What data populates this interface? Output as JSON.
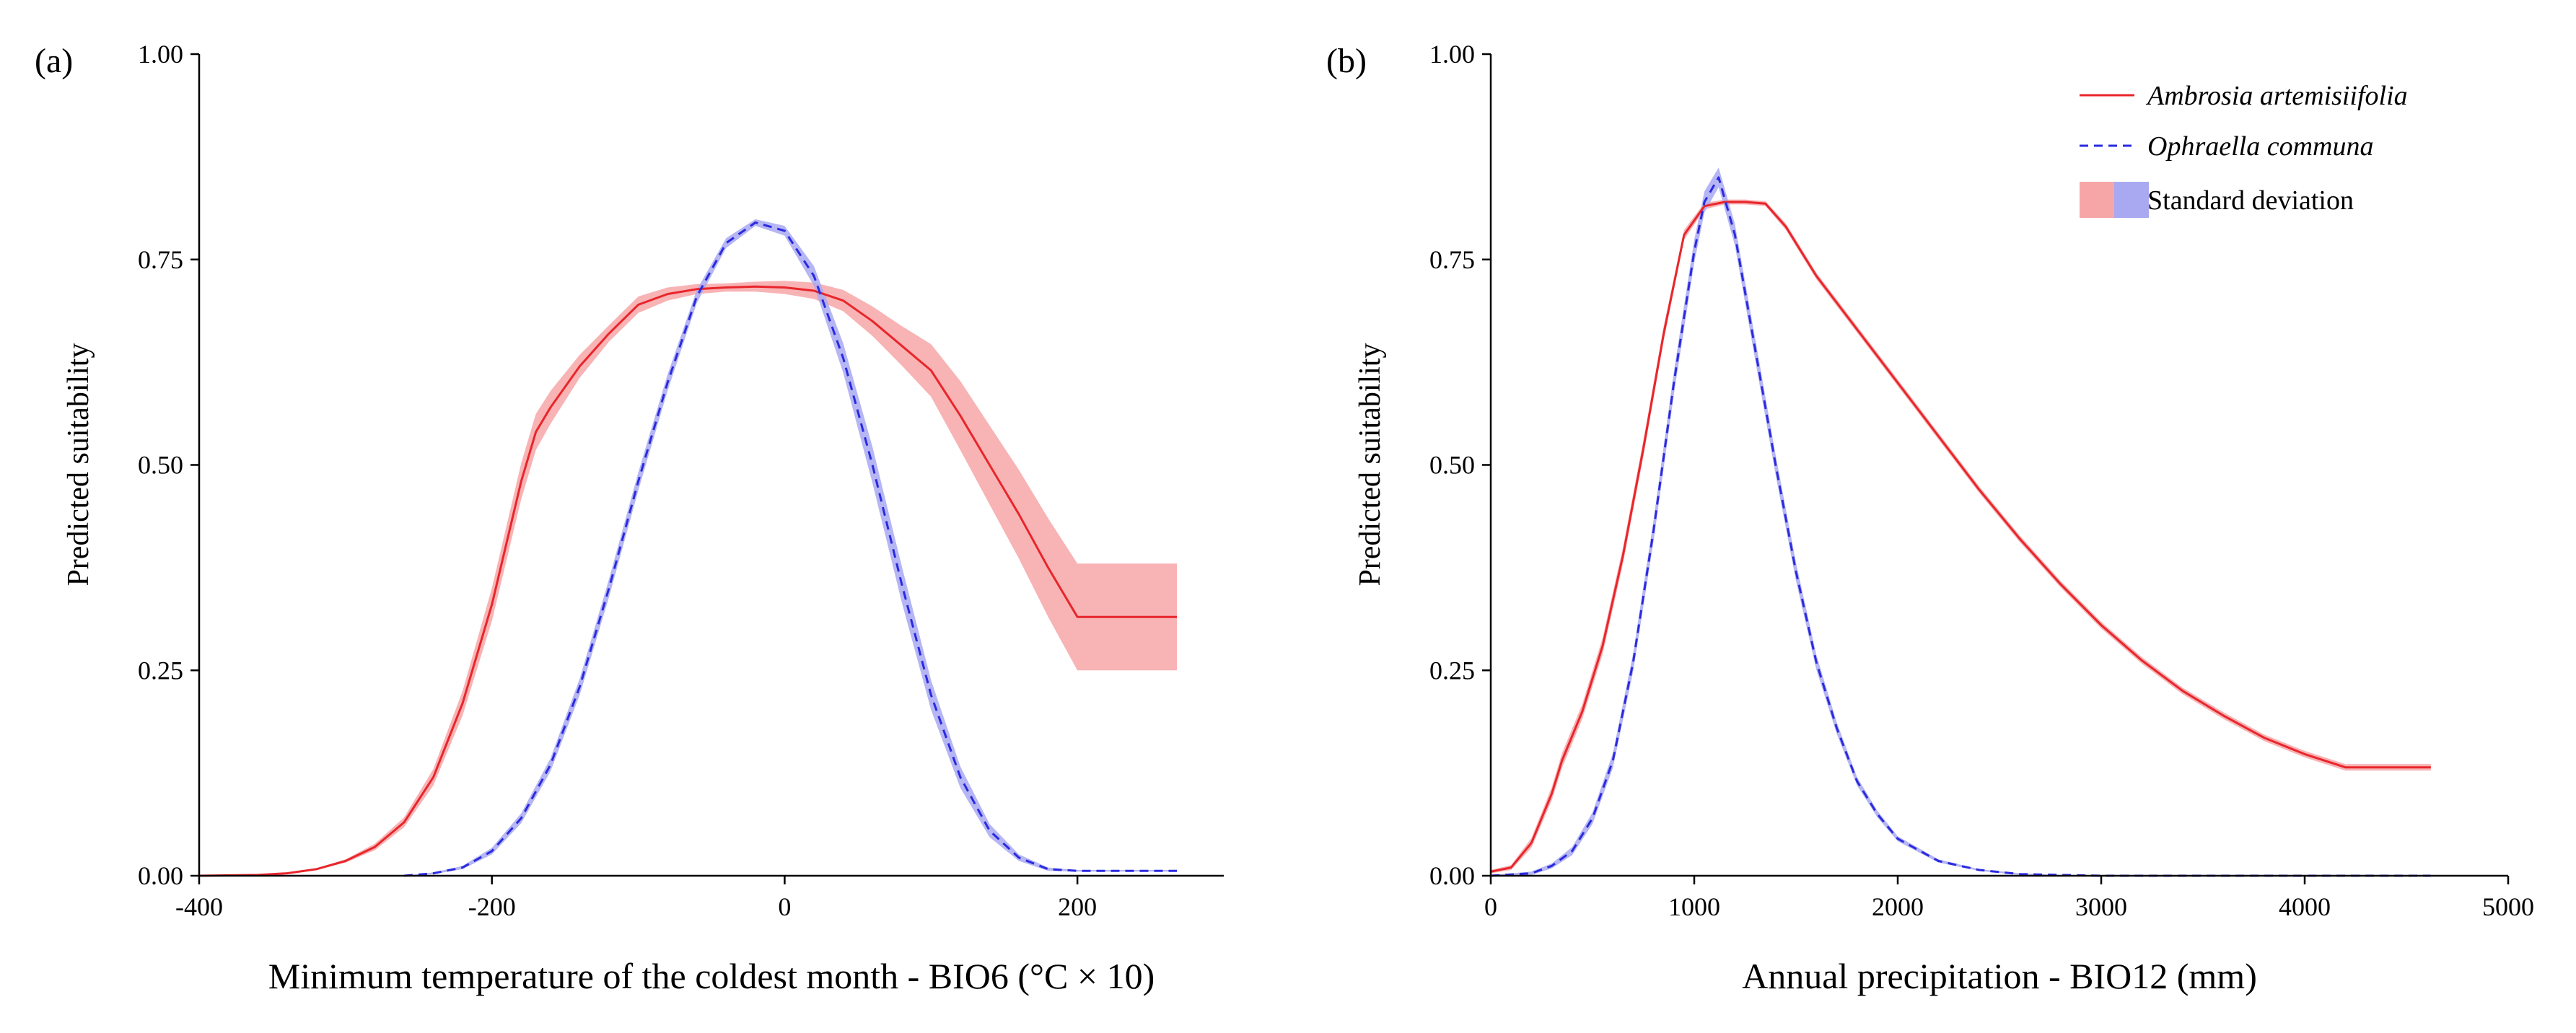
{
  "colors": {
    "ambrosia_line": "#e8262b",
    "ambrosia_band": "#f7a6a8",
    "ophraella_line": "#2a2ae0",
    "ophraella_band": "#a9a9f2"
  },
  "legend": {
    "series1": "Ambrosia artemisiifolia",
    "series2": "Ophraella communa",
    "band": "Standard deviation",
    "placement": "top-right of panel (b)"
  },
  "chart_data": [
    {
      "panel": "(a)",
      "type": "line",
      "xlabel": "Minimum temperature of the coldest month - BIO6 (°C × 10)",
      "ylabel": "Predicted suitability",
      "xlim": [
        -400,
        300
      ],
      "ylim": [
        0,
        1
      ],
      "xticks": [
        "-400",
        "-200",
        "0",
        "200"
      ],
      "xtick_values": [
        -400,
        -200,
        0,
        200
      ],
      "yticks": [
        "0.00",
        "0.25",
        "0.50",
        "0.75",
        "1.00"
      ],
      "ytick_values": [
        0,
        0.25,
        0.5,
        0.75,
        1.0
      ],
      "series": [
        {
          "name": "Ambrosia artemisiifolia",
          "style": "solid",
          "x": [
            -400,
            -360,
            -340,
            -320,
            -300,
            -280,
            -260,
            -240,
            -220,
            -200,
            -180,
            -170,
            -160,
            -140,
            -120,
            -100,
            -80,
            -60,
            -40,
            -20,
            0,
            20,
            40,
            60,
            80,
            100,
            120,
            140,
            160,
            180,
            200,
            230,
            268
          ],
          "y": [
            0.0,
            0.001,
            0.003,
            0.008,
            0.018,
            0.035,
            0.065,
            0.12,
            0.21,
            0.33,
            0.48,
            0.54,
            0.57,
            0.62,
            0.66,
            0.695,
            0.708,
            0.714,
            0.716,
            0.717,
            0.716,
            0.712,
            0.7,
            0.675,
            0.645,
            0.615,
            0.56,
            0.5,
            0.44,
            0.375,
            0.315,
            0.315,
            0.315
          ],
          "sd": [
            0,
            0,
            0,
            0.001,
            0.002,
            0.004,
            0.006,
            0.01,
            0.015,
            0.02,
            0.022,
            0.022,
            0.02,
            0.014,
            0.01,
            0.01,
            0.008,
            0.006,
            0.005,
            0.006,
            0.008,
            0.01,
            0.013,
            0.018,
            0.024,
            0.032,
            0.042,
            0.048,
            0.054,
            0.06,
            0.065,
            0.065,
            0.065
          ]
        },
        {
          "name": "Ophraella communa",
          "style": "dashed",
          "x": [
            -260,
            -240,
            -220,
            -200,
            -180,
            -160,
            -140,
            -120,
            -100,
            -80,
            -60,
            -40,
            -20,
            0,
            20,
            40,
            60,
            80,
            100,
            120,
            140,
            160,
            180,
            200,
            230,
            268
          ],
          "y": [
            0.0,
            0.003,
            0.01,
            0.03,
            0.07,
            0.135,
            0.23,
            0.35,
            0.48,
            0.6,
            0.705,
            0.77,
            0.795,
            0.785,
            0.73,
            0.63,
            0.5,
            0.355,
            0.22,
            0.12,
            0.055,
            0.022,
            0.008,
            0.006,
            0.006,
            0.006
          ],
          "sd": [
            0,
            0.001,
            0.002,
            0.004,
            0.006,
            0.008,
            0.01,
            0.011,
            0.011,
            0.01,
            0.008,
            0.006,
            0.004,
            0.006,
            0.012,
            0.018,
            0.022,
            0.022,
            0.018,
            0.013,
            0.008,
            0.004,
            0.002,
            0.001,
            0.001,
            0.001
          ]
        }
      ]
    },
    {
      "panel": "(b)",
      "type": "line",
      "xlabel": "Annual precipitation - BIO12 (mm)",
      "ylabel": "Predicted suitability",
      "xlim": [
        0,
        5000
      ],
      "ylim": [
        0,
        1
      ],
      "xticks": [
        "0",
        "1000",
        "2000",
        "3000",
        "4000",
        "5000"
      ],
      "xtick_values": [
        0,
        1000,
        2000,
        3000,
        4000,
        5000
      ],
      "yticks": [
        "0.00",
        "0.25",
        "0.50",
        "0.75",
        "1.00"
      ],
      "ytick_values": [
        0,
        0.25,
        0.5,
        0.75,
        1.0
      ],
      "series": [
        {
          "name": "Ambrosia artemisiifolia",
          "style": "solid",
          "x": [
            0,
            100,
            200,
            300,
            350,
            450,
            550,
            650,
            750,
            850,
            950,
            1050,
            1150,
            1250,
            1350,
            1450,
            1600,
            1800,
            2000,
            2200,
            2400,
            2600,
            2800,
            3000,
            3200,
            3400,
            3600,
            3800,
            4000,
            4200,
            4400,
            4620
          ],
          "y": [
            0.005,
            0.01,
            0.04,
            0.1,
            0.14,
            0.2,
            0.28,
            0.39,
            0.52,
            0.66,
            0.78,
            0.815,
            0.82,
            0.82,
            0.818,
            0.79,
            0.73,
            0.665,
            0.6,
            0.535,
            0.47,
            0.41,
            0.355,
            0.305,
            0.262,
            0.225,
            0.195,
            0.168,
            0.148,
            0.132,
            0.132,
            0.132
          ],
          "sd": [
            0.002,
            0.003,
            0.006,
            0.008,
            0.009,
            0.009,
            0.01,
            0.01,
            0.01,
            0.009,
            0.006,
            0.004,
            0.003,
            0.003,
            0.003,
            0.004,
            0.004,
            0.004,
            0.004,
            0.004,
            0.004,
            0.004,
            0.004,
            0.004,
            0.004,
            0.004,
            0.004,
            0.004,
            0.004,
            0.004,
            0.004,
            0.004
          ]
        },
        {
          "name": "Ophraella communa",
          "style": "dashed",
          "x": [
            0,
            200,
            300,
            400,
            500,
            600,
            700,
            800,
            900,
            1000,
            1050,
            1120,
            1200,
            1300,
            1400,
            1500,
            1600,
            1700,
            1800,
            1900,
            2000,
            2200,
            2400,
            2600,
            2800,
            3000,
            3500,
            4000,
            4620
          ],
          "y": [
            0.0,
            0.003,
            0.012,
            0.03,
            0.07,
            0.14,
            0.26,
            0.42,
            0.6,
            0.76,
            0.82,
            0.85,
            0.78,
            0.64,
            0.5,
            0.37,
            0.26,
            0.18,
            0.115,
            0.075,
            0.045,
            0.018,
            0.007,
            0.002,
            0.001,
            0.0,
            0.0,
            0.0,
            0.0
          ],
          "sd": [
            0.001,
            0.002,
            0.003,
            0.005,
            0.007,
            0.009,
            0.011,
            0.013,
            0.014,
            0.014,
            0.013,
            0.012,
            0.013,
            0.013,
            0.012,
            0.011,
            0.009,
            0.007,
            0.005,
            0.004,
            0.003,
            0.002,
            0.001,
            0.001,
            0.0,
            0.0,
            0.0,
            0.0,
            0.0
          ]
        }
      ]
    }
  ]
}
